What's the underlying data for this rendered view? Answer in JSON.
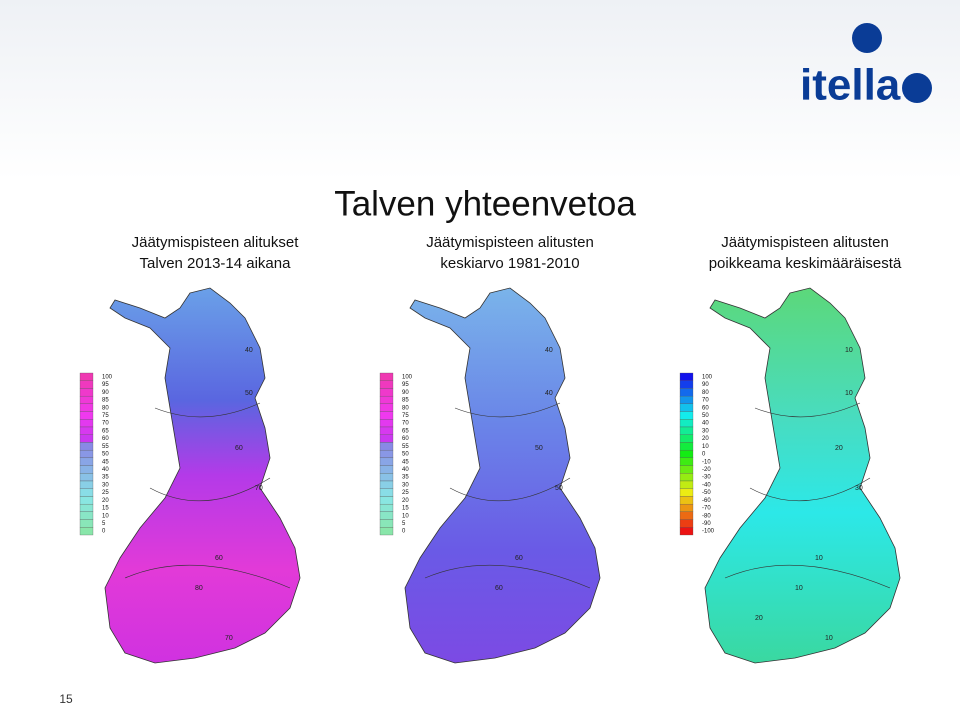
{
  "logo": "itella",
  "title": "Talven yhteenvetoa",
  "page_number": "15",
  "maps": [
    {
      "caption": [
        "Jäätymispisteen alitukset",
        "Talven 2013-14 aikana"
      ],
      "legend": [
        100,
        95,
        90,
        85,
        80,
        75,
        70,
        65,
        60,
        55,
        50,
        45,
        40,
        35,
        30,
        25,
        20,
        15,
        10,
        5,
        0
      ],
      "contour_labels": [
        "40",
        "50",
        "60",
        "60",
        "70",
        "80",
        "70"
      ]
    },
    {
      "caption": [
        "Jäätymispisteen alitusten",
        "keskiarvo 1981-2010"
      ],
      "legend": [
        100,
        95,
        90,
        85,
        80,
        75,
        70,
        65,
        60,
        55,
        50,
        45,
        40,
        35,
        30,
        25,
        20,
        15,
        10,
        5,
        0
      ],
      "contour_labels": [
        "40",
        "40",
        "50",
        "60",
        "50",
        "60"
      ]
    },
    {
      "caption": [
        "Jäätymispisteen alitusten",
        "poikkeama keskimääräisestä"
      ],
      "legend": [
        100,
        90,
        80,
        70,
        60,
        50,
        40,
        30,
        20,
        10,
        0,
        -10,
        -20,
        -30,
        -40,
        -50,
        -60,
        -70,
        -80,
        -90,
        -100
      ],
      "contour_labels": [
        "10",
        "10",
        "20",
        "10",
        "30",
        "10",
        "10",
        "20"
      ]
    }
  ]
}
